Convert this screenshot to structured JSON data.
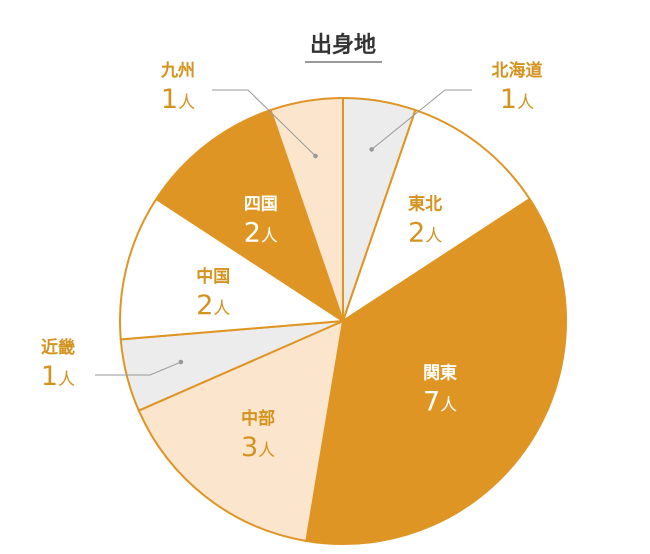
{
  "chart_data": {
    "type": "pie",
    "title": "出身地",
    "unit": "人",
    "slices": [
      {
        "label": "北海道",
        "value": 1,
        "color": "#ececec"
      },
      {
        "label": "東北",
        "value": 2,
        "color": "#ffffff"
      },
      {
        "label": "関東",
        "value": 7,
        "color": "#df9524"
      },
      {
        "label": "中部",
        "value": 3,
        "color": "#fbe6cd"
      },
      {
        "label": "近畿",
        "value": 1,
        "color": "#ececec"
      },
      {
        "label": "中国",
        "value": 2,
        "color": "#ffffff"
      },
      {
        "label": "四国",
        "value": 2,
        "color": "#df9524"
      },
      {
        "label": "九州",
        "value": 1,
        "color": "#fbe6cd"
      }
    ],
    "colors": {
      "label_text": "#d4921f",
      "label_on_dark": "#ffffff",
      "outline": "#df9524",
      "leader": "#999999",
      "title": "#333333"
    }
  }
}
